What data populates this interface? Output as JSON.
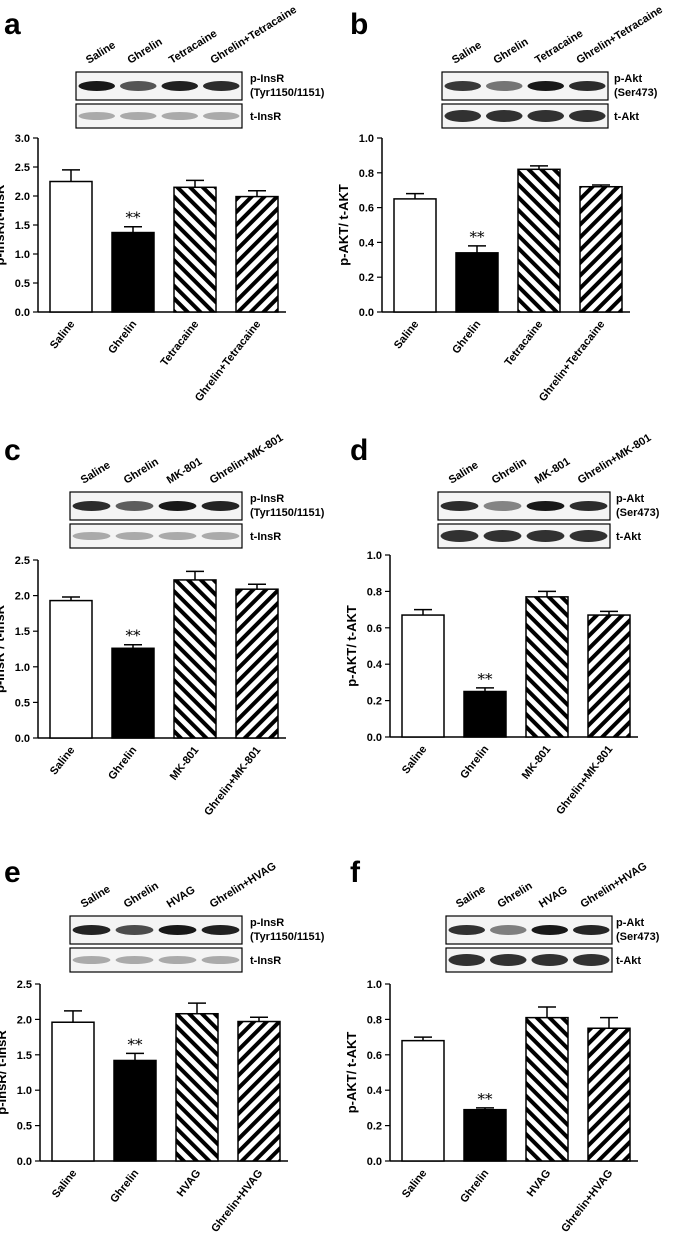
{
  "panels": [
    {
      "letter": "a",
      "lanes": [
        "Saline",
        "Ghrelin",
        "Tetracaine",
        "Ghrelin+Tetracaine"
      ],
      "blot_top_label": [
        "p-InsR",
        "(Tyr1150/1151)"
      ],
      "blot_bottom_label": "t-InsR",
      "chart_data": {
        "type": "bar",
        "categories": [
          "Saline",
          "Ghrelin",
          "Tetracaine",
          "Ghrelin+Tetracaine"
        ],
        "values": [
          2.25,
          1.37,
          2.15,
          1.99
        ],
        "errors": [
          0.2,
          0.1,
          0.12,
          0.1
        ],
        "significance": [
          "",
          "**",
          "",
          ""
        ],
        "fills": [
          "open",
          "solid",
          "hatch-back",
          "hatch-fwd"
        ],
        "ylabel": "p-InsR/t-InsR",
        "ylim": [
          0,
          3.0
        ],
        "yticks": [
          "0.0",
          "0.5",
          "1.0",
          "1.5",
          "2.0",
          "2.5",
          "3.0"
        ],
        "grid": false,
        "legend": "none"
      }
    },
    {
      "letter": "b",
      "lanes": [
        "Saline",
        "Ghrelin",
        "Tetracaine",
        "Ghrelin+Tetracaine"
      ],
      "blot_top_label": [
        "p-Akt",
        "(Ser473)"
      ],
      "blot_bottom_label": "t-Akt",
      "chart_data": {
        "type": "bar",
        "categories": [
          "Saline",
          "Ghrelin",
          "Tetracaine",
          "Ghrelin+Tetracaine"
        ],
        "values": [
          0.65,
          0.34,
          0.82,
          0.72
        ],
        "errors": [
          0.03,
          0.04,
          0.02,
          0.01
        ],
        "significance": [
          "",
          "**",
          "",
          ""
        ],
        "fills": [
          "open",
          "solid",
          "hatch-back",
          "hatch-fwd"
        ],
        "ylabel": "p-AKT/ t-AKT",
        "ylim": [
          0,
          1.0
        ],
        "yticks": [
          "0.0",
          "0.2",
          "0.4",
          "0.6",
          "0.8",
          "1.0"
        ],
        "grid": false,
        "legend": "none"
      }
    },
    {
      "letter": "c",
      "lanes": [
        "Saline",
        "Ghrelin",
        "MK-801",
        "Ghrelin+MK-801"
      ],
      "blot_top_label": [
        "p-InsR",
        "(Tyr1150/1151)"
      ],
      "blot_bottom_label": "t-InsR",
      "chart_data": {
        "type": "bar",
        "categories": [
          "Saline",
          "Ghrelin",
          "MK-801",
          "Ghrelin+MK-801"
        ],
        "values": [
          1.93,
          1.26,
          2.22,
          2.09
        ],
        "errors": [
          0.05,
          0.05,
          0.12,
          0.07
        ],
        "significance": [
          "",
          "**",
          "",
          ""
        ],
        "fills": [
          "open",
          "solid",
          "hatch-back",
          "hatch-fwd"
        ],
        "ylabel": "p-InsR / t-InsR",
        "ylim": [
          0,
          2.5
        ],
        "yticks": [
          "0.0",
          "0.5",
          "1.0",
          "1.5",
          "2.0",
          "2.5"
        ],
        "grid": false,
        "legend": "none"
      }
    },
    {
      "letter": "d",
      "lanes": [
        "Saline",
        "Ghrelin",
        "MK-801",
        "Ghrelin+MK-801"
      ],
      "blot_top_label": [
        "p-Akt",
        "(Ser473)"
      ],
      "blot_bottom_label": "t-Akt",
      "chart_data": {
        "type": "bar",
        "categories": [
          "Saline",
          "Ghrelin",
          "MK-801",
          "Ghrelin+MK-801"
        ],
        "values": [
          0.67,
          0.25,
          0.77,
          0.67
        ],
        "errors": [
          0.03,
          0.02,
          0.03,
          0.02
        ],
        "significance": [
          "",
          "**",
          "",
          ""
        ],
        "fills": [
          "open",
          "solid",
          "hatch-back",
          "hatch-fwd"
        ],
        "ylabel": "p-AKT/ t-AKT",
        "ylim": [
          0,
          1.0
        ],
        "yticks": [
          "0.0",
          "0.2",
          "0.4",
          "0.6",
          "0.8",
          "1.0"
        ],
        "grid": false,
        "legend": "none"
      }
    },
    {
      "letter": "e",
      "lanes": [
        "Saline",
        "Ghrelin",
        "HVAG",
        "Ghrelin+HVAG"
      ],
      "blot_top_label": [
        "p-InsR",
        "(Tyr1150/1151)"
      ],
      "blot_bottom_label": "t-InsR",
      "chart_data": {
        "type": "bar",
        "categories": [
          "Saline",
          "Ghrelin",
          "HVAG",
          "Ghrelin+HVAG"
        ],
        "values": [
          1.96,
          1.42,
          2.08,
          1.97
        ],
        "errors": [
          0.16,
          0.1,
          0.15,
          0.06
        ],
        "significance": [
          "",
          "**",
          "",
          ""
        ],
        "fills": [
          "open",
          "solid",
          "hatch-back",
          "hatch-fwd"
        ],
        "ylabel": "p-InsR/ t-InsR",
        "ylim": [
          0,
          2.5
        ],
        "yticks": [
          "0.0",
          "0.5",
          "1.0",
          "1.5",
          "2.0",
          "2.5"
        ],
        "grid": false,
        "legend": "none"
      }
    },
    {
      "letter": "f",
      "lanes": [
        "Saline",
        "Ghrelin",
        "HVAG",
        "Ghrelin+HVAG"
      ],
      "blot_top_label": [
        "p-Akt",
        "(Ser473)"
      ],
      "blot_bottom_label": "t-Akt",
      "chart_data": {
        "type": "bar",
        "categories": [
          "Saline",
          "Ghrelin",
          "HVAG",
          "Ghrelin+HVAG"
        ],
        "values": [
          0.68,
          0.29,
          0.81,
          0.75
        ],
        "errors": [
          0.02,
          0.01,
          0.06,
          0.06
        ],
        "significance": [
          "",
          "**",
          "",
          ""
        ],
        "fills": [
          "open",
          "solid",
          "hatch-back",
          "hatch-fwd"
        ],
        "ylabel": "p-AKT/ t-AKT",
        "ylim": [
          0,
          1.0
        ],
        "yticks": [
          "0.0",
          "0.2",
          "0.4",
          "0.6",
          "0.8",
          "1.0"
        ],
        "grid": false,
        "legend": "none"
      }
    }
  ]
}
